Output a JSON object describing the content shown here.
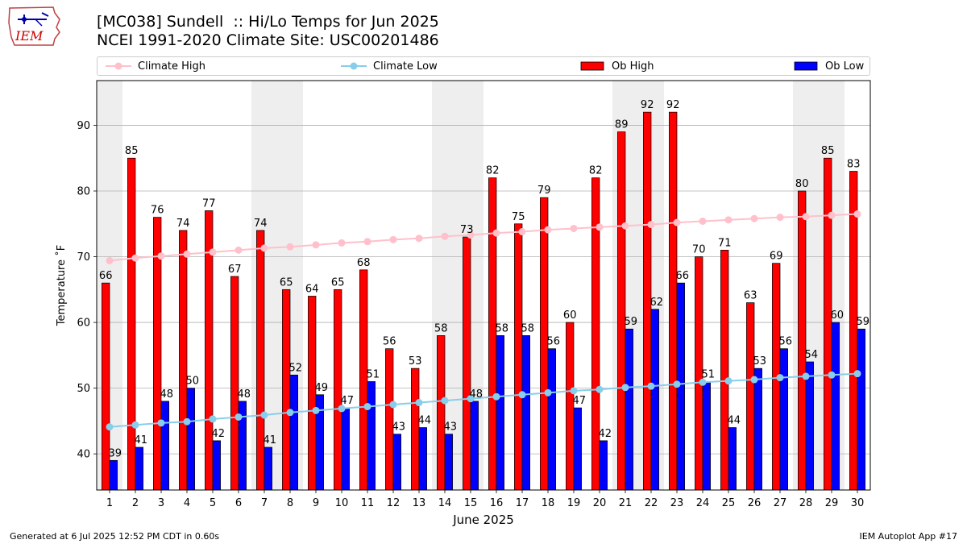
{
  "header": {
    "title_line1": "[MC038] Sundell  :: Hi/Lo Temps for Jun 2025",
    "title_line2": "NCEI 1991-2020 Climate Site: USC00201486"
  },
  "logo": {
    "text": "IEM",
    "icon": "iowa-state-weather-logo"
  },
  "footer": {
    "left": "Generated at 6 Jul 2025 12:52 PM CDT in 0.60s",
    "right": "IEM Autoplot App #17"
  },
  "colors": {
    "ob_high": "#ff0000",
    "ob_low": "#0000ff",
    "climate_high": "#ffc0cb",
    "climate_low": "#87ceeb",
    "weekend_shade": "#eeeeee",
    "grid": "#b0b0b0"
  },
  "chart_data": {
    "type": "bar",
    "xlabel": "June 2025",
    "ylabel": "Temperature ˚F",
    "ylim": [
      34.5,
      96.8
    ],
    "yticks": [
      40,
      50,
      60,
      70,
      80,
      90
    ],
    "grid": "horizontal",
    "legend_position": "top",
    "categories": [
      "1",
      "2",
      "3",
      "4",
      "5",
      "6",
      "7",
      "8",
      "9",
      "10",
      "11",
      "12",
      "13",
      "14",
      "15",
      "16",
      "17",
      "18",
      "19",
      "20",
      "21",
      "22",
      "23",
      "24",
      "25",
      "26",
      "27",
      "28",
      "29",
      "30"
    ],
    "weekend_days": [
      1,
      7,
      8,
      14,
      15,
      21,
      22,
      28,
      29
    ],
    "series": [
      {
        "name": "Climate High",
        "kind": "line",
        "values": [
          69.4,
          69.8,
          70.1,
          70.4,
          70.7,
          71.0,
          71.3,
          71.5,
          71.8,
          72.1,
          72.3,
          72.6,
          72.8,
          73.1,
          73.3,
          73.6,
          73.8,
          74.1,
          74.3,
          74.5,
          74.7,
          74.9,
          75.2,
          75.4,
          75.6,
          75.8,
          76.0,
          76.1,
          76.3,
          76.5
        ]
      },
      {
        "name": "Climate Low",
        "kind": "line",
        "values": [
          44.1,
          44.4,
          44.7,
          44.9,
          45.3,
          45.6,
          45.9,
          46.3,
          46.6,
          46.9,
          47.2,
          47.5,
          47.8,
          48.1,
          48.4,
          48.7,
          49.0,
          49.3,
          49.6,
          49.8,
          50.1,
          50.3,
          50.6,
          50.9,
          51.1,
          51.3,
          51.6,
          51.8,
          52.0,
          52.2
        ]
      },
      {
        "name": "Ob High",
        "kind": "bar",
        "values": [
          66,
          85,
          76,
          74,
          77,
          67,
          74,
          65,
          64,
          65,
          68,
          56,
          53,
          58,
          73,
          82,
          75,
          79,
          60,
          82,
          89,
          92,
          92,
          70,
          71,
          63,
          69,
          80,
          85,
          83
        ]
      },
      {
        "name": "Ob Low",
        "kind": "bar",
        "values": [
          39,
          41,
          48,
          50,
          42,
          48,
          41,
          52,
          49,
          47,
          51,
          43,
          44,
          43,
          48,
          58,
          58,
          56,
          47,
          42,
          59,
          62,
          66,
          51,
          44,
          53,
          56,
          54,
          60,
          59
        ]
      }
    ]
  }
}
